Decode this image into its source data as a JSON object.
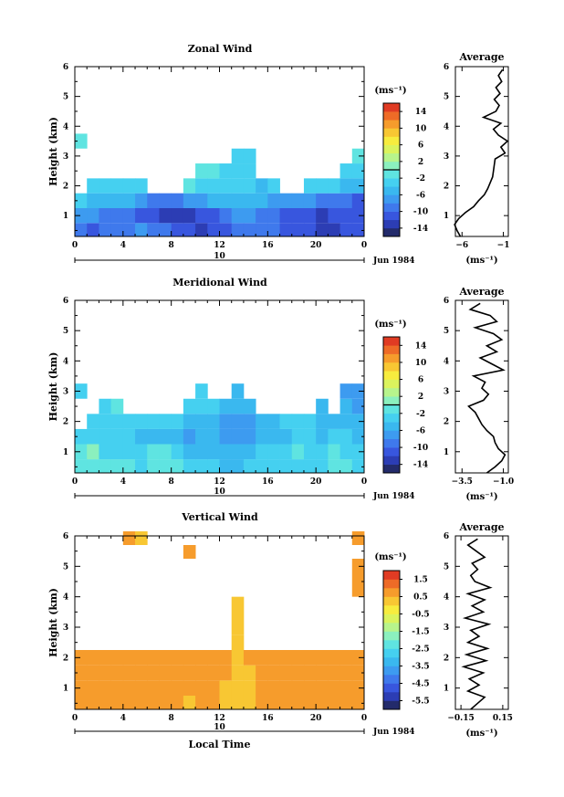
{
  "chart_data": [
    {
      "type": "heatmap",
      "title": "Zonal Wind",
      "ylabel": "Height (km)",
      "ylim": [
        0.3,
        6
      ],
      "y_ticks": [
        "1",
        "2",
        "3",
        "4",
        "5",
        "6"
      ],
      "xlim": [
        0,
        24
      ],
      "x_ticks": [
        "0",
        "4",
        "8",
        "12",
        "16",
        "20",
        "0"
      ],
      "day_label": "10",
      "date_label": "Jun 1984",
      "colorbar": {
        "unit": "(ms⁻¹)",
        "range": [
          -16,
          16
        ],
        "ticks": [
          "14",
          "10",
          "6",
          "2",
          "-2",
          "-6",
          "-10",
          "-14"
        ],
        "zero_line": 0
      },
      "field": {
        "rows": [
          {
            "z": 0.5,
            "values": [
              -10,
              -11,
              -10,
              -9,
              -9,
              -8,
              -9,
              -10,
              -11,
              -12,
              -13,
              -12,
              -11,
              -10,
              -9,
              -9,
              -10,
              -11,
              -12,
              -12,
              -13,
              -13,
              -12,
              -12
            ]
          },
          {
            "z": 1.0,
            "values": [
              -7,
              -8,
              -9,
              -9,
              -10,
              -11,
              -12,
              -13,
              -14,
              -13,
              -12,
              -11,
              -9,
              -8,
              -8,
              -9,
              -10,
              -12,
              -12,
              -12,
              -13,
              -12,
              -11,
              -12
            ]
          },
          {
            "z": 1.5,
            "values": [
              -4,
              -5,
              -5,
              -5,
              -6,
              -8,
              -9,
              -9,
              -9,
              -8,
              -7,
              -6,
              -5,
              -5,
              -5,
              -6,
              -7,
              -7,
              -7,
              -8,
              -10,
              -10,
              -10,
              -11
            ]
          },
          {
            "z": 2.0,
            "values": [
              null,
              -3,
              -3,
              -3,
              -3,
              -3,
              null,
              null,
              null,
              -2,
              -3,
              -4,
              -4,
              -4,
              -4,
              -5,
              -4,
              null,
              null,
              -3,
              -3,
              -4,
              -5,
              -6
            ]
          },
          {
            "z": 2.5,
            "values": [
              null,
              null,
              null,
              null,
              null,
              null,
              null,
              null,
              null,
              null,
              -1,
              -2,
              -3,
              -3,
              -3,
              null,
              null,
              null,
              null,
              null,
              null,
              null,
              -3,
              -3
            ]
          },
          {
            "z": 3.0,
            "values": [
              null,
              null,
              null,
              null,
              null,
              null,
              null,
              null,
              null,
              null,
              null,
              null,
              null,
              -3,
              -3,
              null,
              null,
              null,
              null,
              null,
              null,
              null,
              null,
              -2
            ]
          },
          {
            "z": 3.5,
            "values": [
              -1,
              null,
              null,
              null,
              null,
              null,
              null,
              null,
              null,
              null,
              null,
              null,
              null,
              null,
              null,
              null,
              null,
              null,
              null,
              null,
              null,
              null,
              null,
              null
            ]
          }
        ]
      },
      "profile": {
        "title": "Average",
        "xlabel": "(ms⁻¹)",
        "xlim": [
          -6.8,
          -0.4
        ],
        "x_ticks": [
          -6,
          -1
        ],
        "x_tick_labels": [
          "−6",
          "−1"
        ],
        "z": [
          0.3,
          0.5,
          0.7,
          0.9,
          1.1,
          1.3,
          1.5,
          1.7,
          1.9,
          2.1,
          2.3,
          2.5,
          2.7,
          2.9,
          3.1,
          3.3,
          3.5,
          3.7,
          3.9,
          4.1,
          4.3,
          4.5,
          4.7,
          4.9,
          5.1,
          5.3,
          5.5,
          5.7,
          5.9
        ],
        "values": [
          -6.2,
          -6.6,
          -6.9,
          -6.4,
          -5.6,
          -4.6,
          -4.0,
          -3.3,
          -2.9,
          -2.6,
          -2.3,
          -2.2,
          -2.1,
          -2.0,
          -0.8,
          -1.3,
          -0.5,
          -1.6,
          -2.2,
          -1.3,
          -3.4,
          -1.9,
          -1.5,
          -2.1,
          -1.4,
          -1.9,
          -1.2,
          -1.6,
          -1.1
        ]
      }
    },
    {
      "type": "heatmap",
      "title": "Meridional Wind",
      "ylabel": "Height (km)",
      "ylim": [
        0.3,
        6
      ],
      "y_ticks": [
        "1",
        "2",
        "3",
        "4",
        "5",
        "6"
      ],
      "xlim": [
        0,
        24
      ],
      "x_ticks": [
        "0",
        "4",
        "8",
        "12",
        "16",
        "20",
        "0"
      ],
      "day_label": "10",
      "date_label": "Jun 1984",
      "colorbar": {
        "unit": "(ms⁻¹)",
        "range": [
          -16,
          16
        ],
        "ticks": [
          "14",
          "10",
          "6",
          "2",
          "-2",
          "-6",
          "-10",
          "-14"
        ],
        "zero_line": 0
      },
      "field": {
        "rows": [
          {
            "z": 0.5,
            "values": [
              -2,
              -2,
              -1,
              -2,
              -2,
              -3,
              -2,
              -1,
              -2,
              -3,
              -4,
              -4,
              -5,
              -5,
              -4,
              -3,
              -4,
              -4,
              -3,
              -4,
              -3,
              -2,
              -1,
              -3
            ]
          },
          {
            "z": 1.0,
            "values": [
              -2,
              0,
              -3,
              -4,
              -3,
              -3,
              -1,
              -2,
              -4,
              -5,
              -6,
              -5,
              -5,
              -6,
              -5,
              -3,
              -4,
              -3,
              -2,
              -3,
              -4,
              -2,
              -3,
              -4
            ]
          },
          {
            "z": 1.5,
            "values": [
              -3,
              -4,
              -4,
              -3,
              -4,
              -5,
              -5,
              -6,
              -6,
              -7,
              -6,
              -6,
              -7,
              -8,
              -7,
              -6,
              -5,
              -5,
              -4,
              -4,
              -5,
              -4,
              -4,
              -5
            ]
          },
          {
            "z": 2.0,
            "values": [
              null,
              -3,
              -3,
              -3,
              -3,
              -3,
              -3,
              -4,
              -4,
              -5,
              -5,
              -6,
              -7,
              -8,
              -7,
              -6,
              -5,
              -4,
              -4,
              -4,
              -5,
              -5,
              -5,
              -6
            ]
          },
          {
            "z": 2.5,
            "values": [
              null,
              null,
              -3,
              -2,
              null,
              null,
              null,
              null,
              null,
              -3,
              -4,
              -4,
              -5,
              -6,
              -5,
              null,
              null,
              null,
              null,
              null,
              -5,
              null,
              -6,
              -7
            ]
          },
          {
            "z": 3.0,
            "values": [
              -3,
              null,
              null,
              null,
              null,
              null,
              null,
              null,
              null,
              null,
              -4,
              null,
              null,
              -5,
              null,
              null,
              null,
              null,
              null,
              null,
              null,
              null,
              -7,
              -8
            ]
          }
        ]
      },
      "profile": {
        "title": "Average",
        "xlabel": "(ms⁻¹)",
        "xlim": [
          -3.9,
          -0.7
        ],
        "x_ticks": [
          -3.5,
          -1.0
        ],
        "x_tick_labels": [
          "−3.5",
          "−1.0"
        ],
        "z": [
          0.3,
          0.5,
          0.7,
          0.9,
          1.1,
          1.3,
          1.5,
          1.7,
          1.9,
          2.1,
          2.3,
          2.5,
          2.7,
          2.9,
          3.1,
          3.3,
          3.5,
          3.7,
          3.9,
          4.1,
          4.3,
          4.5,
          4.7,
          4.9,
          5.1,
          5.3,
          5.5,
          5.7,
          5.9
        ],
        "values": [
          -2.0,
          -1.5,
          -1.1,
          -0.9,
          -1.3,
          -1.5,
          -1.6,
          -2.0,
          -2.3,
          -2.5,
          -2.7,
          -3.1,
          -2.2,
          -1.9,
          -2.3,
          -2.1,
          -2.8,
          -1.0,
          -1.7,
          -2.4,
          -1.4,
          -2.0,
          -1.1,
          -1.6,
          -2.7,
          -1.4,
          -1.8,
          -3.0,
          -2.4
        ]
      }
    },
    {
      "type": "heatmap",
      "title": "Vertical Wind",
      "ylabel": "Height (km)",
      "xlabel": "Local Time",
      "ylim": [
        0.3,
        6
      ],
      "y_ticks": [
        "1",
        "2",
        "3",
        "4",
        "5",
        "6"
      ],
      "xlim": [
        0,
        24
      ],
      "x_ticks": [
        "0",
        "4",
        "8",
        "12",
        "16",
        "20",
        "0"
      ],
      "day_label": "10",
      "date_label": "Jun 1984",
      "colorbar": {
        "unit": "(ms⁻¹)",
        "range": [
          -6.0,
          2.0
        ],
        "ticks": [
          "1.5",
          "0.5",
          "-0.5",
          "-1.5",
          "-2.5",
          "-3.5",
          "-4.5",
          "-5.5"
        ],
        "zero_line": null
      },
      "field": {
        "rows": [
          {
            "z": 0.5,
            "values": [
              0.8,
              0.7,
              0.8,
              0.7,
              0.6,
              0.7,
              0.8,
              0.7,
              0.5,
              0.4,
              0.6,
              0.7,
              0.4,
              0.3,
              0.2,
              0.5,
              0.7,
              0.8,
              0.6,
              0.7,
              0.8,
              0.7,
              0.6,
              0.7
            ]
          },
          {
            "z": 1.0,
            "values": [
              0.9,
              0.8,
              0.7,
              0.8,
              0.7,
              0.6,
              0.8,
              0.7,
              0.6,
              0.5,
              0.6,
              0.5,
              0.4,
              0.2,
              0.3,
              0.5,
              0.6,
              0.7,
              0.8,
              0.7,
              0.6,
              0.8,
              0.7,
              0.8
            ]
          },
          {
            "z": 1.5,
            "values": [
              0.8,
              0.9,
              0.8,
              0.7,
              0.8,
              0.7,
              0.6,
              0.7,
              0.6,
              0.6,
              0.5,
              0.6,
              0.5,
              0.3,
              0.4,
              0.6,
              0.7,
              0.6,
              0.7,
              0.8,
              0.7,
              0.7,
              0.8,
              0.9
            ]
          },
          {
            "z": 2.0,
            "values": [
              0.8,
              0.8,
              0.7,
              0.8,
              0.7,
              0.8,
              0.7,
              0.6,
              0.7,
              0.6,
              0.6,
              0.5,
              0.6,
              0.4,
              0.5,
              0.6,
              0.6,
              0.7,
              0.7,
              0.8,
              0.7,
              0.8,
              0.8,
              0.8
            ]
          },
          {
            "z": 2.5,
            "values": [
              null,
              null,
              null,
              null,
              null,
              null,
              null,
              null,
              null,
              null,
              null,
              null,
              null,
              0.4,
              null,
              null,
              null,
              null,
              null,
              null,
              null,
              null,
              null,
              null
            ]
          },
          {
            "z": 3.0,
            "values": [
              null,
              null,
              null,
              null,
              null,
              null,
              null,
              null,
              null,
              null,
              null,
              null,
              null,
              0.3,
              null,
              null,
              null,
              null,
              null,
              null,
              null,
              null,
              null,
              null
            ]
          },
          {
            "z": 5.0,
            "values": [
              null,
              null,
              null,
              null,
              null,
              null,
              null,
              null,
              null,
              null,
              null,
              null,
              null,
              null,
              null,
              null,
              null,
              null,
              null,
              null,
              null,
              null,
              null,
              0.7
            ]
          },
          {
            "z": 5.5,
            "values": [
              null,
              null,
              null,
              null,
              null,
              null,
              null,
              null,
              null,
              0.5,
              null,
              null,
              null,
              null,
              null,
              null,
              null,
              null,
              null,
              null,
              null,
              null,
              null,
              null
            ]
          },
          {
            "z": 5.9,
            "values": [
              null,
              null,
              null,
              null,
              0.5,
              0.4,
              null,
              null,
              null,
              null,
              null,
              null,
              null,
              null,
              null,
              null,
              null,
              null,
              null,
              null,
              null,
              null,
              null,
              0.6
            ]
          }
        ]
      },
      "profile": {
        "title": "Average",
        "xlabel": "(ms⁻¹)",
        "xlim": [
          -0.19,
          0.19
        ],
        "x_ticks": [
          -0.15,
          0.15
        ],
        "x_tick_labels": [
          "−0.15",
          "0.15"
        ],
        "z": [
          0.3,
          0.5,
          0.7,
          0.9,
          1.1,
          1.3,
          1.5,
          1.7,
          1.9,
          2.1,
          2.3,
          2.5,
          2.7,
          2.9,
          3.1,
          3.3,
          3.5,
          3.7,
          3.9,
          4.1,
          4.3,
          4.5,
          4.7,
          4.9,
          5.1,
          5.3,
          5.5,
          5.7,
          5.9
        ],
        "values": [
          -0.08,
          -0.03,
          0.02,
          -0.1,
          -0.02,
          -0.09,
          0.01,
          -0.13,
          0.03,
          -0.11,
          0.04,
          -0.1,
          -0.02,
          -0.08,
          0.05,
          -0.12,
          0.01,
          -0.07,
          0.02,
          -0.1,
          0.06,
          -0.05,
          -0.08,
          -0.03,
          -0.07,
          0.02,
          -0.04,
          -0.1,
          -0.03
        ]
      }
    }
  ]
}
